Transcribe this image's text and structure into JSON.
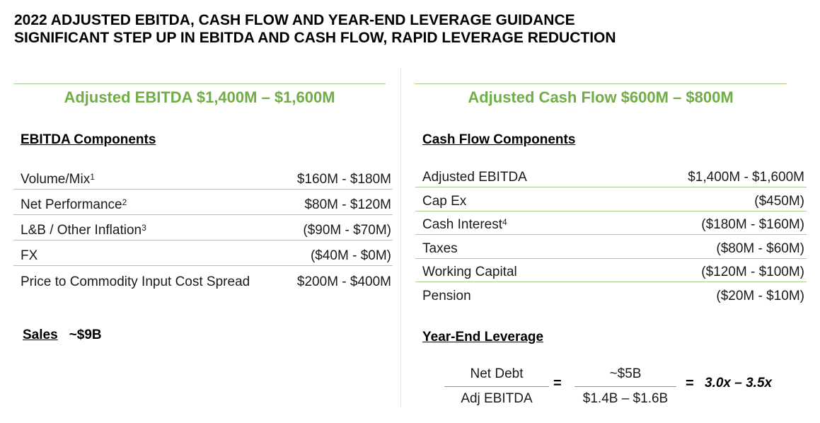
{
  "title": {
    "line1": "2022 ADJUSTED EBITDA, CASH FLOW AND YEAR-END LEVERAGE GUIDANCE",
    "line2": "SIGNIFICANT STEP UP IN EBITDA AND CASH FLOW, RAPID LEVERAGE REDUCTION"
  },
  "left": {
    "heading": "Adjusted EBITDA $1,400M – $1,600M",
    "components_label": "EBITDA Components",
    "rows": [
      {
        "label": "Volume/Mix",
        "sup": "1",
        "value": "$160M - $180M"
      },
      {
        "label": "Net Performance",
        "sup": "2",
        "value": "$80M - $120M"
      },
      {
        "label": "L&B / Other Inflation",
        "sup": "3",
        "value": "($90M - $70M)"
      },
      {
        "label": "FX",
        "sup": "",
        "value": "($40M - $0M)"
      },
      {
        "label": "Price to Commodity Input Cost Spread",
        "sup": "",
        "value": "$200M - $400M"
      }
    ],
    "sales_label": "Sales",
    "sales_value": "~$9B"
  },
  "right": {
    "heading": "Adjusted Cash Flow $600M – $800M",
    "components_label": "Cash Flow Components",
    "rows": [
      {
        "label": "Adjusted EBITDA",
        "sup": "",
        "value": "$1,400M - $1,600M"
      },
      {
        "label": "Cap Ex",
        "sup": "",
        "value": "($450M)"
      },
      {
        "label": "Cash Interest",
        "sup": "4",
        "value": "($180M - $160M)"
      },
      {
        "label": "Taxes",
        "sup": "",
        "value": "($80M - $60M)"
      },
      {
        "label": "Working Capital",
        "sup": "",
        "value": "($120M - $100M)"
      },
      {
        "label": "Pension",
        "sup": "",
        "value": "($20M - $10M)"
      }
    ],
    "leverage_label": "Year-End Leverage",
    "formula": {
      "numerator_label": "Net Debt",
      "denominator_label": "Adj EBITDA",
      "equals1": "=",
      "numerator_value": "~$5B",
      "denominator_value": "$1.4B – $1.6B",
      "equals2": "=",
      "result": "3.0x – 3.5x"
    }
  },
  "colors": {
    "accent_green": "#70ad47",
    "rule_green": "#a8d08d"
  }
}
